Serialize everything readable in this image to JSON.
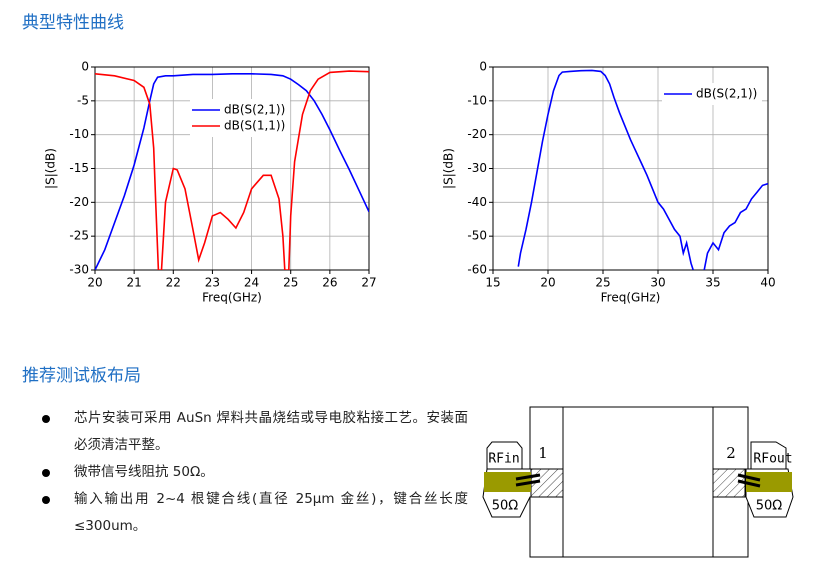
{
  "sections": [
    {
      "title": "典型特性曲线"
    },
    {
      "title": "推荐测试板布局"
    }
  ],
  "chart_data": [
    {
      "type": "line",
      "xlabel": "Freq(GHz)",
      "ylabel": "|S|(dB)",
      "xlim": [
        20,
        27
      ],
      "ylim": [
        -30,
        0
      ],
      "xticks": [
        20,
        21,
        22,
        23,
        24,
        25,
        26,
        27
      ],
      "yticks": [
        0,
        -5,
        -10,
        -15,
        -20,
        -25,
        -30
      ],
      "grid": true,
      "legend": "upper center",
      "series": [
        {
          "name": "dB(S(2,1))",
          "color": "#0000ff",
          "x": [
            20,
            20.25,
            20.5,
            20.75,
            21,
            21.25,
            21.4,
            21.5,
            21.6,
            21.8,
            22,
            22.5,
            23,
            23.5,
            24,
            24.5,
            24.8,
            25,
            25.2,
            25.4,
            25.6,
            25.8,
            26,
            26.25,
            26.5,
            26.75,
            27
          ],
          "values": [
            -30,
            -27,
            -23,
            -19,
            -14.5,
            -9,
            -5,
            -2.5,
            -1.5,
            -1.3,
            -1.3,
            -1.1,
            -1.1,
            -1,
            -1,
            -1.1,
            -1.3,
            -1.8,
            -2.6,
            -3.5,
            -5,
            -7,
            -9.3,
            -12.3,
            -15.2,
            -18.3,
            -21.4
          ]
        },
        {
          "name": "dB(S(1,1))",
          "color": "#ff0000",
          "x": [
            20,
            20.5,
            21,
            21.25,
            21.4,
            21.5,
            21.55,
            21.62,
            21.7,
            21.8,
            22,
            22.1,
            22.3,
            22.5,
            22.65,
            22.8,
            23,
            23.2,
            23.4,
            23.6,
            23.8,
            24,
            24.3,
            24.5,
            24.7,
            24.8,
            24.85,
            24.95,
            25,
            25.1,
            25.3,
            25.5,
            25.7,
            26,
            26.5,
            27
          ],
          "values": [
            -1,
            -1.3,
            -2,
            -3,
            -5.5,
            -12,
            -20,
            -30,
            -30,
            -20,
            -15,
            -15.2,
            -18,
            -24,
            -28.5,
            -26,
            -22,
            -21.5,
            -22.5,
            -23.8,
            -21.5,
            -18,
            -16,
            -16,
            -19.5,
            -25,
            -30,
            -30,
            -22,
            -14,
            -7,
            -3.5,
            -1.8,
            -0.8,
            -0.6,
            -0.7
          ]
        }
      ]
    },
    {
      "type": "line",
      "xlabel": "Freq(GHz)",
      "ylabel": "|S|(dB)",
      "xlim": [
        15,
        40
      ],
      "ylim": [
        -60,
        0
      ],
      "xticks": [
        15,
        20,
        25,
        30,
        35,
        40
      ],
      "yticks": [
        0,
        -10,
        -20,
        -30,
        -40,
        -50,
        -60
      ],
      "grid": true,
      "legend": "upper right",
      "series": [
        {
          "name": "dB(S(2,1))",
          "color": "#0000ff",
          "x": [
            17.3,
            17.5,
            18,
            18.5,
            19,
            19.5,
            20,
            20.5,
            21,
            21.3,
            22,
            23,
            24,
            24.8,
            25.2,
            25.6,
            26,
            26.5,
            27,
            27.5,
            28,
            28.5,
            29,
            29.5,
            30,
            30.5,
            31,
            31.5,
            32,
            32.3,
            32.6,
            33,
            33.2,
            33.7,
            34.2,
            34.5,
            35,
            35.5,
            36,
            36.5,
            37,
            37.5,
            38,
            38.5,
            39,
            39.5,
            40
          ],
          "values": [
            -59,
            -55,
            -48,
            -40,
            -31,
            -22,
            -14,
            -7,
            -2.5,
            -1.5,
            -1.3,
            -1.1,
            -1,
            -1.3,
            -2.5,
            -5,
            -9,
            -13.5,
            -17.5,
            -21.5,
            -25,
            -28.5,
            -32,
            -36,
            -40,
            -42,
            -45,
            -48,
            -50,
            -55,
            -52,
            -58,
            -60,
            null,
            -60,
            -55,
            -52,
            -54,
            -49,
            -47,
            -46,
            -43,
            -42,
            -39,
            -37,
            -35,
            -34.5
          ]
        }
      ]
    }
  ],
  "bullets": [
    "芯片安装可采用 AuSn 焊料共晶烧结或导电胶粘接工艺。安装面必须清洁平整。",
    "微带信号线阻抗 50Ω。",
    "输入输出用 2~4 根键合线(直径 25μm 金丝)，键合丝长度≤300um。"
  ],
  "diagram": {
    "ports": [
      {
        "label": "RFin",
        "number": "1",
        "impedance": "50Ω"
      },
      {
        "label": "RFout",
        "number": "2",
        "impedance": "50Ω"
      }
    ]
  }
}
